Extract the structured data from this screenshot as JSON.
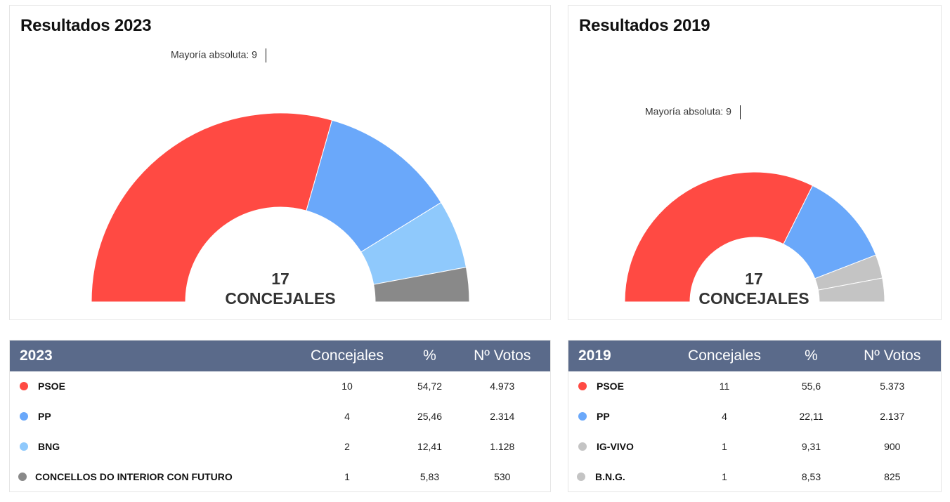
{
  "chart_data": [
    {
      "type": "pie",
      "subtype": "parliament-half-donut",
      "title": "Resultados 2023",
      "majority_label": "Mayoría absoluta: 9",
      "total_number": "17",
      "total_label": "CONCEJALES",
      "total_seats": 17,
      "categories": [
        "PSOE",
        "PP",
        "BNG",
        "CONCELLOS DO INTERIOR CON FUTURO"
      ],
      "values": [
        10,
        4,
        2,
        1
      ],
      "colors": [
        "#ff4a43",
        "#6aa8fa",
        "#8fc9fc",
        "#898989"
      ]
    },
    {
      "type": "pie",
      "subtype": "parliament-half-donut",
      "title": "Resultados 2019",
      "majority_label": "Mayoría absoluta: 9",
      "total_number": "17",
      "total_label": "CONCEJALES",
      "total_seats": 17,
      "categories": [
        "PSOE",
        "PP",
        "IG-VIVO",
        "B.N.G."
      ],
      "values": [
        11,
        4,
        1,
        1
      ],
      "colors": [
        "#ff4a43",
        "#6aa8fa",
        "#c4c4c4",
        "#c4c4c4"
      ]
    }
  ],
  "tables": {
    "t2023": {
      "headers": [
        "2023",
        "Concejales",
        "%",
        "Nº Votos"
      ],
      "rows": [
        {
          "party": "PSOE",
          "seats": "10",
          "pct": "54,72",
          "votes": "4.973",
          "color": "#ff4a43"
        },
        {
          "party": "PP",
          "seats": "4",
          "pct": "25,46",
          "votes": "2.314",
          "color": "#6aa8fa"
        },
        {
          "party": "BNG",
          "seats": "2",
          "pct": "12,41",
          "votes": "1.128",
          "color": "#8fc9fc"
        },
        {
          "party": "CONCELLOS DO INTERIOR CON FUTURO",
          "seats": "1",
          "pct": "5,83",
          "votes": "530",
          "color": "#898989"
        }
      ]
    },
    "t2019": {
      "headers": [
        "2019",
        "Concejales",
        "%",
        "Nº Votos"
      ],
      "rows": [
        {
          "party": "PSOE",
          "seats": "11",
          "pct": "55,6",
          "votes": "5.373",
          "color": "#ff4a43"
        },
        {
          "party": "PP",
          "seats": "4",
          "pct": "22,11",
          "votes": "2.137",
          "color": "#6aa8fa"
        },
        {
          "party": "IG-VIVO",
          "seats": "1",
          "pct": "9,31",
          "votes": "900",
          "color": "#c4c4c4"
        },
        {
          "party": "B.N.G.",
          "seats": "1",
          "pct": "8,53",
          "votes": "825",
          "color": "#c4c4c4"
        }
      ]
    }
  },
  "theme": {
    "header_bg": "#5a6a8a"
  }
}
